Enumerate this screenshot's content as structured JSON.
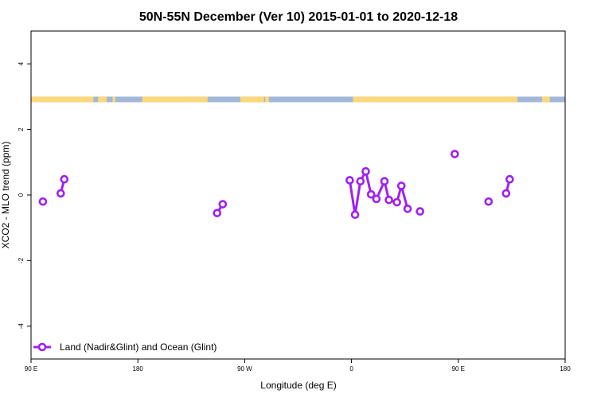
{
  "chart_data": {
    "type": "line",
    "title": "50N-55N December (Ver 10)   2015-01-01 to 2020-12-18",
    "xlabel": "Longitude (deg E)",
    "ylabel": "XCO2 - MLO trend (ppm)",
    "xlim": [
      90,
      270
    ],
    "ylim": [
      -5,
      5
    ],
    "x_ticks": [
      {
        "value": 90,
        "label": "90 E"
      },
      {
        "value": 126,
        "label": "180"
      },
      {
        "value": 162,
        "label": "90 W"
      },
      {
        "value": 198,
        "label": "0"
      },
      {
        "value": 234,
        "label": "90 E"
      },
      {
        "value": 270,
        "label": "180"
      }
    ],
    "y_ticks": [
      {
        "value": 4,
        "label": "4"
      },
      {
        "value": 2,
        "label": "2"
      },
      {
        "value": 0,
        "label": "0"
      },
      {
        "value": -2,
        "label": "-2"
      },
      {
        "value": -4,
        "label": "-4"
      }
    ],
    "grid": false,
    "legend": {
      "placement": "bottom-left"
    },
    "series": [
      {
        "name": "Land (Nadir&Glint) and Ocean (Glint)",
        "color": "#a020f0",
        "segments": [
          [
            {
              "x": 94,
              "y": -0.2
            }
          ],
          [
            {
              "x": 100,
              "y": 0.05
            },
            {
              "x": 101.2,
              "y": 0.48
            }
          ],
          [
            {
              "x": 152.7,
              "y": -0.55
            },
            {
              "x": 154.6,
              "y": -0.28
            }
          ],
          [
            {
              "x": 197.4,
              "y": 0.45
            },
            {
              "x": 199.2,
              "y": -0.6
            },
            {
              "x": 201,
              "y": 0.42
            },
            {
              "x": 202.8,
              "y": 0.72
            },
            {
              "x": 204.6,
              "y": 0.02
            },
            {
              "x": 206.4,
              "y": -0.12
            },
            {
              "x": 209.1,
              "y": 0.42
            },
            {
              "x": 210.6,
              "y": -0.15
            },
            {
              "x": 213.3,
              "y": -0.22
            },
            {
              "x": 214.8,
              "y": 0.28
            },
            {
              "x": 216.9,
              "y": -0.42
            }
          ],
          [
            {
              "x": 221.1,
              "y": -0.5
            }
          ],
          [
            {
              "x": 232.8,
              "y": 1.25
            }
          ],
          [
            {
              "x": 244.2,
              "y": -0.2
            }
          ],
          [
            {
              "x": 250.1,
              "y": 0.05
            },
            {
              "x": 251.3,
              "y": 0.48
            }
          ]
        ]
      }
    ],
    "band": {
      "y_range": [
        2.83,
        3.0
      ],
      "ocean_color": "#a2b8d9",
      "land_color": "#fcd87a",
      "land_x_ranges": [
        [
          90,
          111
        ],
        [
          112.6,
          115.5
        ],
        [
          117.5,
          118.4
        ],
        [
          127.5,
          149.5
        ],
        [
          160.5,
          168.5
        ],
        [
          168.9,
          170.2
        ],
        [
          198.5,
          253.9
        ],
        [
          262.2,
          264.8
        ]
      ]
    }
  }
}
